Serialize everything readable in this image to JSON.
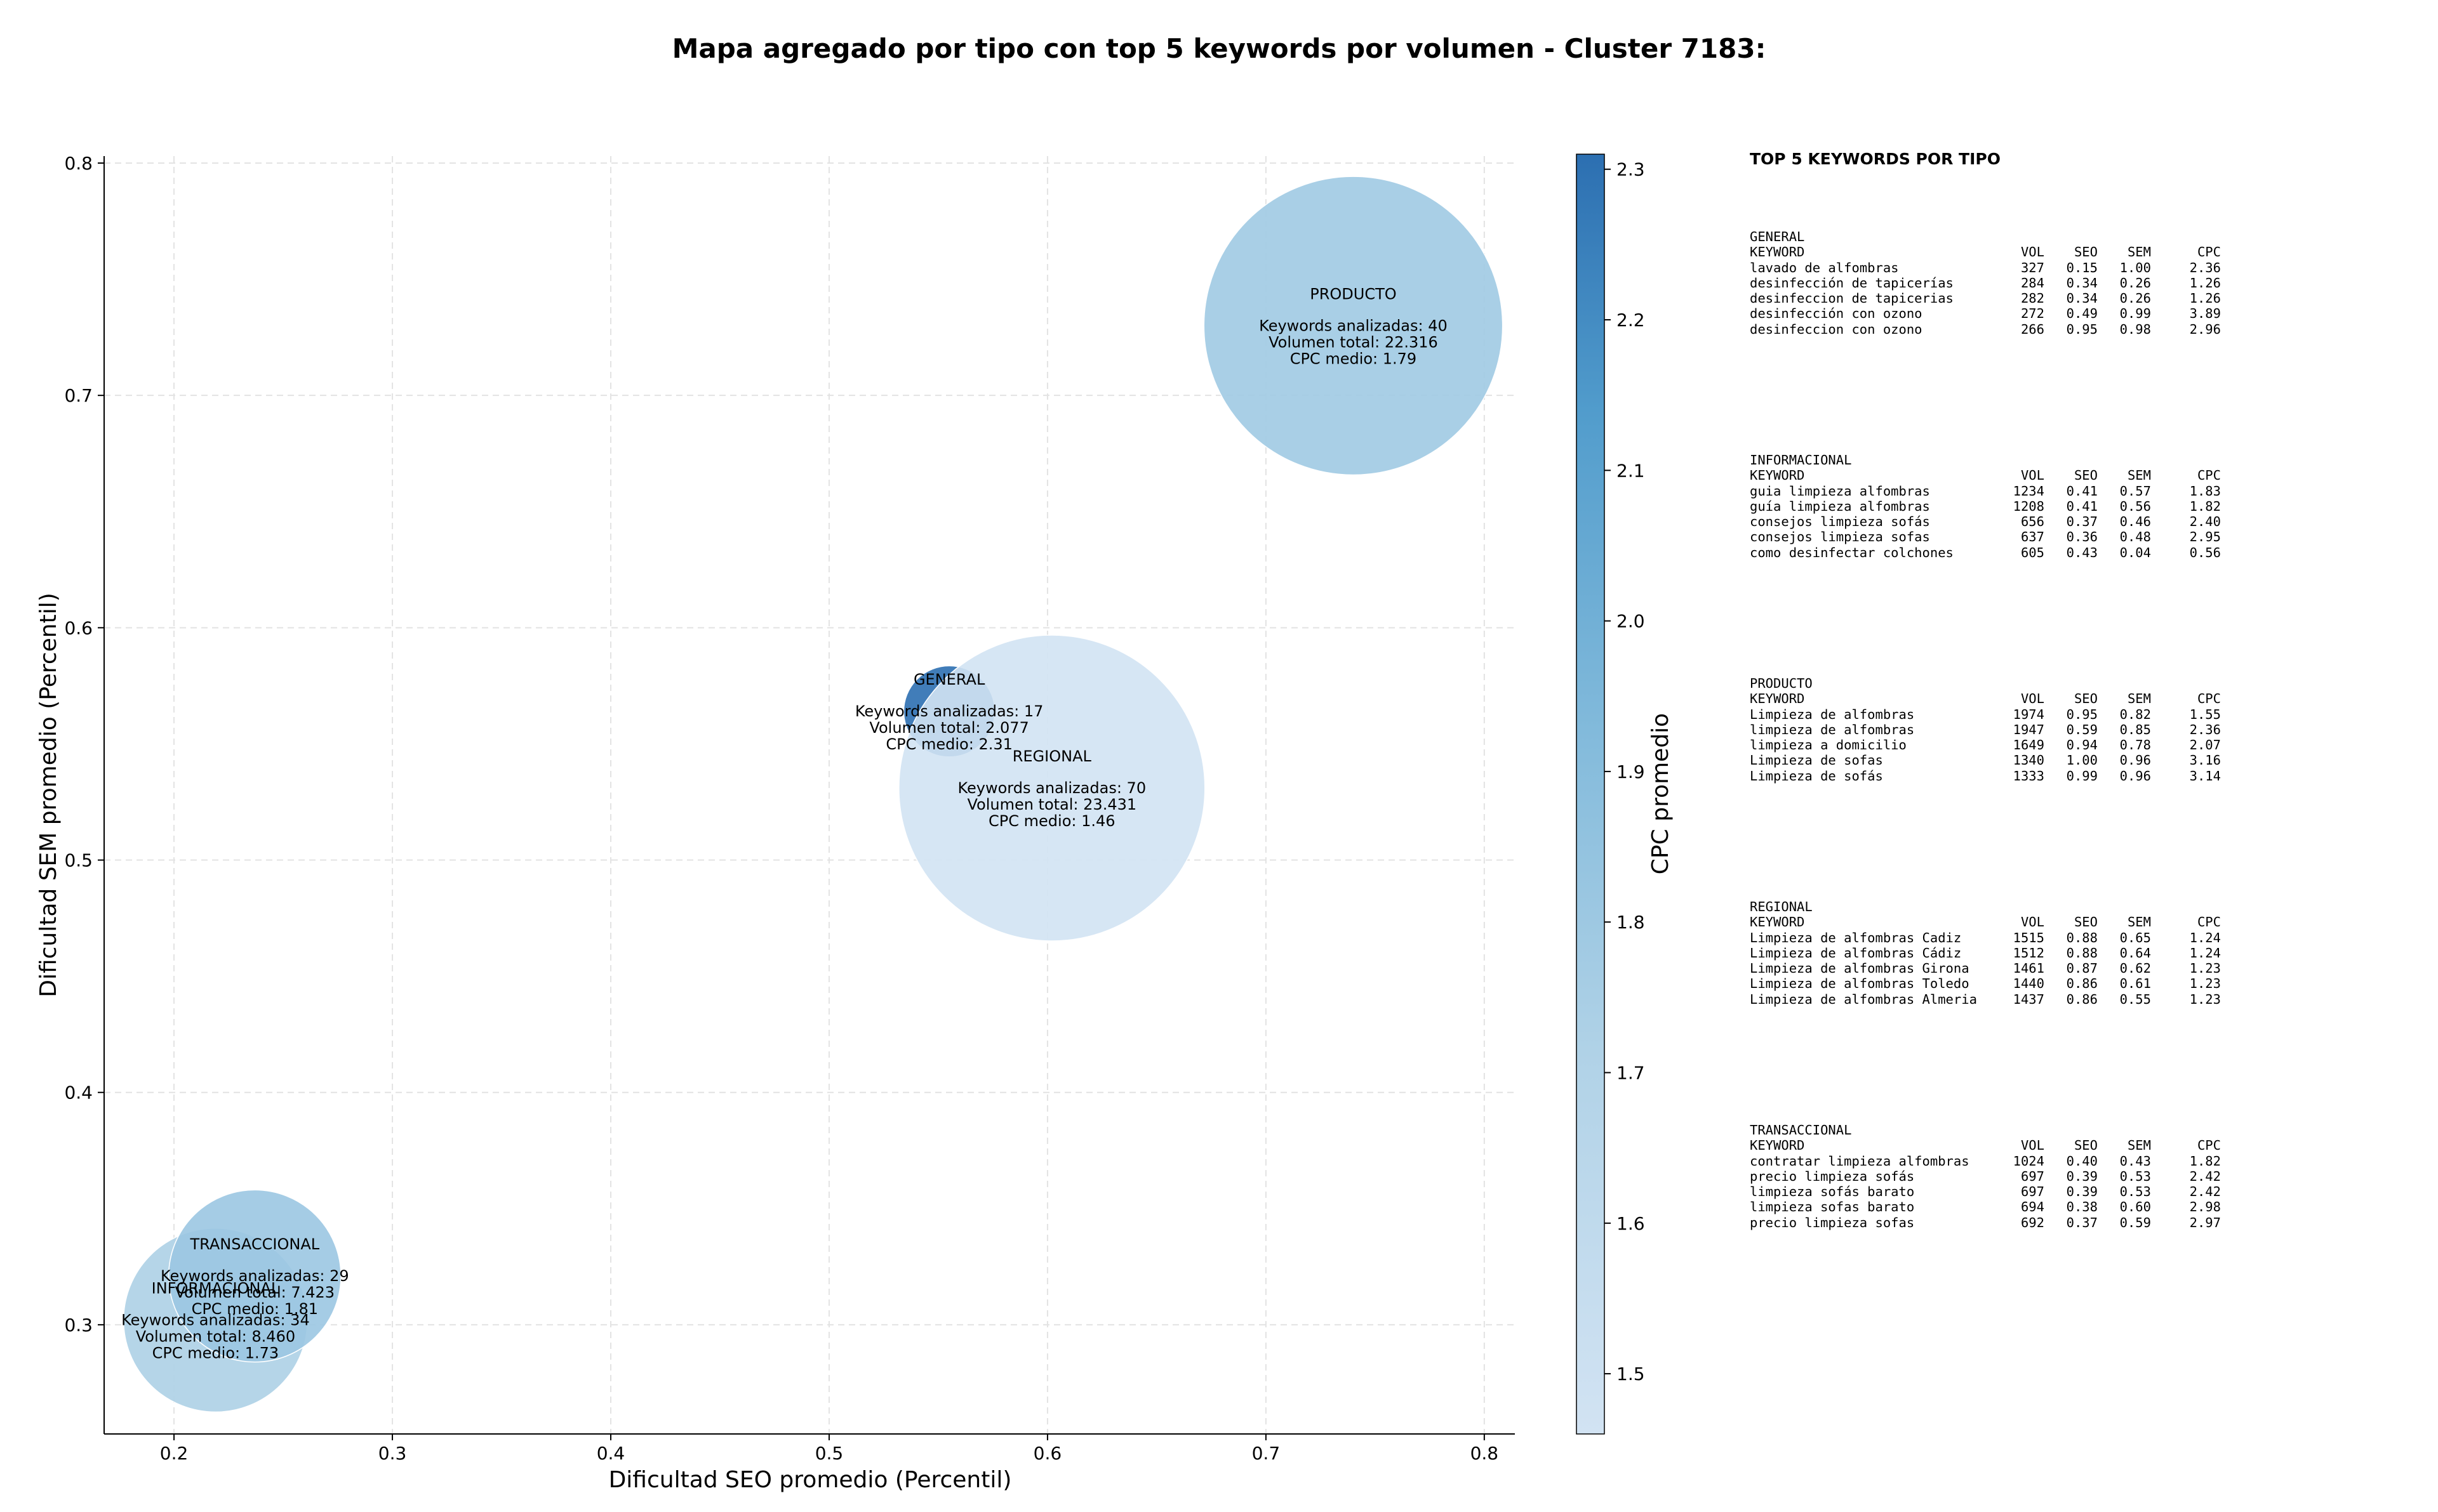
{
  "chart_data": {
    "type": "scatter",
    "title": "Mapa agregado por tipo con top 5 keywords por volumen - Cluster 7183:",
    "xlabel": "Dificultad SEO promedio (Percentil)",
    "ylabel": "Dificultad SEM promedio (Percentil)",
    "xlim": [
      0.168,
      0.814
    ],
    "ylim": [
      0.253,
      0.803
    ],
    "xticks": [
      "0.2",
      "0.3",
      "0.4",
      "0.5",
      "0.6",
      "0.7",
      "0.8"
    ],
    "yticks": [
      "0.3",
      "0.4",
      "0.5",
      "0.6",
      "0.7",
      "0.8"
    ],
    "grid": true,
    "colorbar": {
      "label": "CPC promedio",
      "min": 1.46,
      "max": 2.31,
      "ticks": [
        "1.5",
        "1.6",
        "1.7",
        "1.8",
        "1.9",
        "2.0",
        "2.1",
        "2.2",
        "2.3"
      ]
    },
    "points": [
      {
        "name": "INFORMACIONAL",
        "x": 0.219,
        "y": 0.302,
        "volume": 8460,
        "cpc": 1.73,
        "lines": [
          "Keywords analizadas: 34",
          "Volumen total: 8.460",
          "CPC medio: 1.73"
        ]
      },
      {
        "name": "TRANSACCIONAL",
        "x": 0.237,
        "y": 0.321,
        "volume": 7423,
        "cpc": 1.81,
        "lines": [
          "Keywords analizadas: 29",
          "Volumen total: 7.423",
          "CPC medio: 1.81"
        ]
      },
      {
        "name": "GENERAL",
        "x": 0.555,
        "y": 0.564,
        "volume": 2077,
        "cpc": 2.31,
        "lines": [
          "Keywords analizadas: 17",
          "Volumen total: 2.077",
          "CPC medio: 2.31"
        ]
      },
      {
        "name": "REGIONAL",
        "x": 0.602,
        "y": 0.531,
        "volume": 23431,
        "cpc": 1.46,
        "lines": [
          "Keywords analizadas: 70",
          "Volumen total: 23.431",
          "CPC medio: 1.46"
        ]
      },
      {
        "name": "PRODUCTO",
        "x": 0.74,
        "y": 0.73,
        "volume": 22316,
        "cpc": 1.79,
        "lines": [
          "Keywords analizadas: 40",
          "Volumen total: 22.316",
          "CPC medio: 1.79"
        ]
      }
    ]
  },
  "tables": {
    "title": "TOP 5 KEYWORDS POR TIPO",
    "header": {
      "kw": "KEYWORD",
      "vol": "VOL",
      "seo": "SEO",
      "sem": "SEM",
      "cpc": "CPC"
    },
    "groups": [
      {
        "name": "GENERAL",
        "rows": [
          {
            "kw": "lavado de alfombras",
            "vol": "327",
            "seo": "0.15",
            "sem": "1.00",
            "cpc": "2.36"
          },
          {
            "kw": "desinfección de tapicerías",
            "vol": "284",
            "seo": "0.34",
            "sem": "0.26",
            "cpc": "1.26"
          },
          {
            "kw": "desinfeccion de tapicerias",
            "vol": "282",
            "seo": "0.34",
            "sem": "0.26",
            "cpc": "1.26"
          },
          {
            "kw": "desinfección con ozono",
            "vol": "272",
            "seo": "0.49",
            "sem": "0.99",
            "cpc": "3.89"
          },
          {
            "kw": "desinfeccion con ozono",
            "vol": "266",
            "seo": "0.95",
            "sem": "0.98",
            "cpc": "2.96"
          }
        ]
      },
      {
        "name": "INFORMACIONAL",
        "rows": [
          {
            "kw": "guia limpieza alfombras",
            "vol": "1234",
            "seo": "0.41",
            "sem": "0.57",
            "cpc": "1.83"
          },
          {
            "kw": "guía limpieza alfombras",
            "vol": "1208",
            "seo": "0.41",
            "sem": "0.56",
            "cpc": "1.82"
          },
          {
            "kw": "consejos limpieza sofás",
            "vol": "656",
            "seo": "0.37",
            "sem": "0.46",
            "cpc": "2.40"
          },
          {
            "kw": "consejos limpieza sofas",
            "vol": "637",
            "seo": "0.36",
            "sem": "0.48",
            "cpc": "2.95"
          },
          {
            "kw": "como desinfectar colchones",
            "vol": "605",
            "seo": "0.43",
            "sem": "0.04",
            "cpc": "0.56"
          }
        ]
      },
      {
        "name": "PRODUCTO",
        "rows": [
          {
            "kw": "Limpieza de alfombras",
            "vol": "1974",
            "seo": "0.95",
            "sem": "0.82",
            "cpc": "1.55"
          },
          {
            "kw": "limpieza de alfombras",
            "vol": "1947",
            "seo": "0.59",
            "sem": "0.85",
            "cpc": "2.36"
          },
          {
            "kw": "limpieza a domicilio",
            "vol": "1649",
            "seo": "0.94",
            "sem": "0.78",
            "cpc": "2.07"
          },
          {
            "kw": "Limpieza de sofas",
            "vol": "1340",
            "seo": "1.00",
            "sem": "0.96",
            "cpc": "3.16"
          },
          {
            "kw": "Limpieza de sofás",
            "vol": "1333",
            "seo": "0.99",
            "sem": "0.96",
            "cpc": "3.14"
          }
        ]
      },
      {
        "name": "REGIONAL",
        "rows": [
          {
            "kw": "Limpieza de alfombras Cadiz",
            "vol": "1515",
            "seo": "0.88",
            "sem": "0.65",
            "cpc": "1.24"
          },
          {
            "kw": "Limpieza de alfombras Cádiz",
            "vol": "1512",
            "seo": "0.88",
            "sem": "0.64",
            "cpc": "1.24"
          },
          {
            "kw": "Limpieza de alfombras Girona",
            "vol": "1461",
            "seo": "0.87",
            "sem": "0.62",
            "cpc": "1.23"
          },
          {
            "kw": "Limpieza de alfombras Toledo",
            "vol": "1440",
            "seo": "0.86",
            "sem": "0.61",
            "cpc": "1.23"
          },
          {
            "kw": "Limpieza de alfombras Almeria",
            "vol": "1437",
            "seo": "0.86",
            "sem": "0.55",
            "cpc": "1.23"
          }
        ]
      },
      {
        "name": "TRANSACCIONAL",
        "rows": [
          {
            "kw": "contratar limpieza alfombras",
            "vol": "1024",
            "seo": "0.40",
            "sem": "0.43",
            "cpc": "1.82"
          },
          {
            "kw": "precio limpieza sofás",
            "vol": "697",
            "seo": "0.39",
            "sem": "0.53",
            "cpc": "2.42"
          },
          {
            "kw": "limpieza sofás barato",
            "vol": "697",
            "seo": "0.39",
            "sem": "0.53",
            "cpc": "2.42"
          },
          {
            "kw": "limpieza sofas barato",
            "vol": "694",
            "seo": "0.38",
            "sem": "0.60",
            "cpc": "2.98"
          },
          {
            "kw": "precio limpieza sofas",
            "vol": "692",
            "seo": "0.37",
            "sem": "0.59",
            "cpc": "2.97"
          }
        ]
      }
    ]
  }
}
